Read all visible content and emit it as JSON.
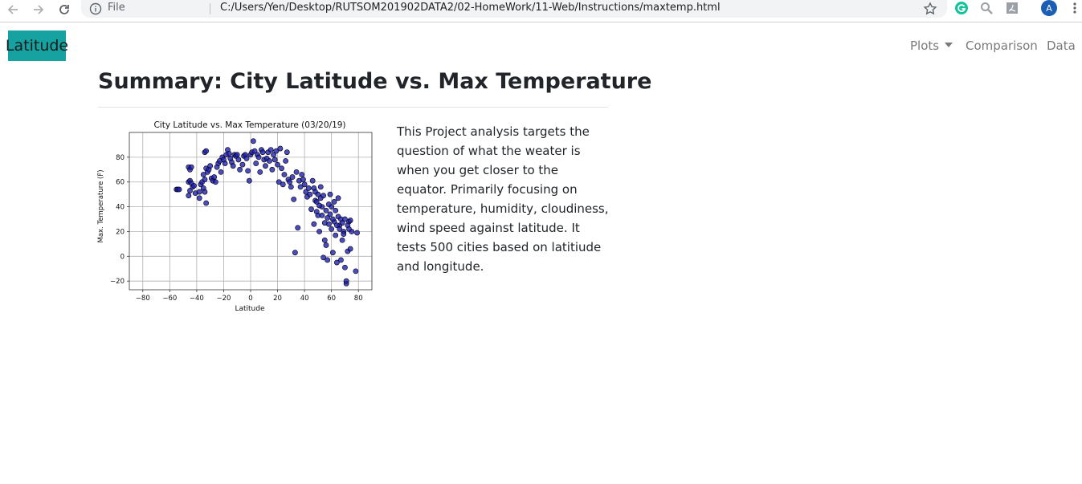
{
  "browser": {
    "file_label": "File",
    "url": "C:/Users/Yen/Desktop/RUTSOM201902DATA2/02-HomeWork/11-Web/Instructions/maxtemp.html",
    "profile_initial": "A"
  },
  "navbar": {
    "brand": "Latitude",
    "links": {
      "plots": "Plots",
      "comparison": "Comparison",
      "data": "Data"
    },
    "brand_color": "#17a2a2"
  },
  "page": {
    "title": "Summary: City Latitude vs. Max Temperature",
    "description": "This Project analysis targets the question of what the weater is when you get closer to the equator. Primarily focusing on temperature, humidity, cloudiness, wind speed against latitude. It tests 500 cities based on latitiude and longitude."
  },
  "chart_data": {
    "type": "scatter",
    "title": "City Latitude vs. Max Temperature (03/20/19)",
    "xlabel": "Latitude",
    "ylabel": "Max. Temperature (F)",
    "xlim": [
      -90,
      90
    ],
    "ylim": [
      -27,
      100
    ],
    "xticks": [
      -80,
      -60,
      -40,
      -20,
      0,
      20,
      40,
      60,
      80
    ],
    "yticks": [
      -20,
      0,
      20,
      40,
      60,
      80
    ],
    "grid": true,
    "marker_color": "#1f1fb4",
    "points": [
      [
        -55,
        54
      ],
      [
        -54,
        54
      ],
      [
        -53,
        54
      ],
      [
        -46,
        72
      ],
      [
        -45,
        70
      ],
      [
        -44,
        72
      ],
      [
        -46,
        60
      ],
      [
        -45,
        61
      ],
      [
        -44,
        59
      ],
      [
        -45,
        53
      ],
      [
        -46,
        49
      ],
      [
        -43,
        56
      ],
      [
        -42,
        57
      ],
      [
        -41,
        51
      ],
      [
        -38,
        52
      ],
      [
        -38,
        47
      ],
      [
        -37,
        58
      ],
      [
        -36,
        60
      ],
      [
        -35,
        55
      ],
      [
        -34,
        52
      ],
      [
        -33,
        43
      ],
      [
        -35,
        66
      ],
      [
        -34,
        62
      ],
      [
        -33,
        71
      ],
      [
        -32,
        68
      ],
      [
        -31,
        70
      ],
      [
        -30,
        73
      ],
      [
        -29,
        63
      ],
      [
        -28,
        61
      ],
      [
        -27,
        64
      ],
      [
        -26,
        60
      ],
      [
        -25,
        72
      ],
      [
        -24,
        75
      ],
      [
        -23,
        77
      ],
      [
        -22,
        68
      ],
      [
        -21,
        80
      ],
      [
        -20,
        78
      ],
      [
        -19,
        75
      ],
      [
        -18,
        82
      ],
      [
        -17,
        86
      ],
      [
        -16,
        83
      ],
      [
        -15,
        79
      ],
      [
        -14,
        76
      ],
      [
        -13,
        73
      ],
      [
        -12,
        82
      ],
      [
        -11,
        81
      ],
      [
        -10,
        82
      ],
      [
        -9,
        78
      ],
      [
        -8,
        70
      ],
      [
        -34,
        84
      ],
      [
        -33,
        85
      ],
      [
        -6,
        74
      ],
      [
        -5,
        81
      ],
      [
        -4,
        82
      ],
      [
        -3,
        79
      ],
      [
        -2,
        69
      ],
      [
        -1,
        61
      ],
      [
        0,
        82
      ],
      [
        1,
        84
      ],
      [
        2,
        93
      ],
      [
        3,
        85
      ],
      [
        4,
        75
      ],
      [
        5,
        82
      ],
      [
        6,
        80
      ],
      [
        7,
        68
      ],
      [
        8,
        86
      ],
      [
        9,
        84
      ],
      [
        10,
        78
      ],
      [
        11,
        73
      ],
      [
        12,
        79
      ],
      [
        13,
        84
      ],
      [
        14,
        77
      ],
      [
        15,
        86
      ],
      [
        16,
        70
      ],
      [
        17,
        82
      ],
      [
        18,
        78
      ],
      [
        19,
        85
      ],
      [
        20,
        74
      ],
      [
        21,
        60
      ],
      [
        22,
        87
      ],
      [
        23,
        71
      ],
      [
        24,
        58
      ],
      [
        25,
        66
      ],
      [
        26,
        77
      ],
      [
        27,
        84
      ],
      [
        28,
        62
      ],
      [
        29,
        60
      ],
      [
        30,
        56
      ],
      [
        31,
        64
      ],
      [
        32,
        46
      ],
      [
        33,
        3
      ],
      [
        34,
        68
      ],
      [
        35,
        23
      ],
      [
        36,
        61
      ],
      [
        37,
        56
      ],
      [
        38,
        66
      ],
      [
        39,
        62
      ],
      [
        40,
        58
      ],
      [
        41,
        52
      ],
      [
        42,
        48
      ],
      [
        43,
        55
      ],
      [
        44,
        50
      ],
      [
        45,
        38
      ],
      [
        46,
        61
      ],
      [
        47,
        26
      ],
      [
        48,
        45
      ],
      [
        49,
        36
      ],
      [
        50,
        33
      ],
      [
        51,
        20
      ],
      [
        52,
        47
      ],
      [
        53,
        40
      ],
      [
        54,
        -1
      ],
      [
        55,
        13
      ],
      [
        56,
        9
      ],
      [
        57,
        -3
      ],
      [
        58,
        26
      ],
      [
        59,
        34
      ],
      [
        60,
        40
      ],
      [
        61,
        3
      ],
      [
        62,
        28
      ],
      [
        63,
        17
      ],
      [
        64,
        -5
      ],
      [
        65,
        32
      ],
      [
        66,
        25
      ],
      [
        67,
        -3
      ],
      [
        68,
        13
      ],
      [
        69,
        20
      ],
      [
        70,
        -9
      ],
      [
        71,
        -22
      ],
      [
        72,
        4
      ],
      [
        73,
        28
      ],
      [
        74,
        6
      ],
      [
        75,
        20
      ],
      [
        78,
        -12
      ],
      [
        79,
        19
      ],
      [
        47,
        55
      ],
      [
        48,
        52
      ],
      [
        49,
        44
      ],
      [
        50,
        50
      ],
      [
        51,
        41
      ],
      [
        52,
        56
      ],
      [
        53,
        33
      ],
      [
        54,
        49
      ],
      [
        55,
        27
      ],
      [
        56,
        37
      ],
      [
        57,
        31
      ],
      [
        58,
        42
      ],
      [
        59,
        50
      ],
      [
        60,
        22
      ],
      [
        61,
        30
      ],
      [
        62,
        44
      ],
      [
        63,
        37
      ],
      [
        64,
        25
      ],
      [
        65,
        47
      ],
      [
        66,
        22
      ],
      [
        67,
        30
      ],
      [
        68,
        27
      ],
      [
        69,
        18
      ],
      [
        70,
        30
      ],
      [
        71,
        -20
      ],
      [
        72,
        25
      ],
      [
        73,
        22
      ],
      [
        74,
        29
      ]
    ]
  }
}
